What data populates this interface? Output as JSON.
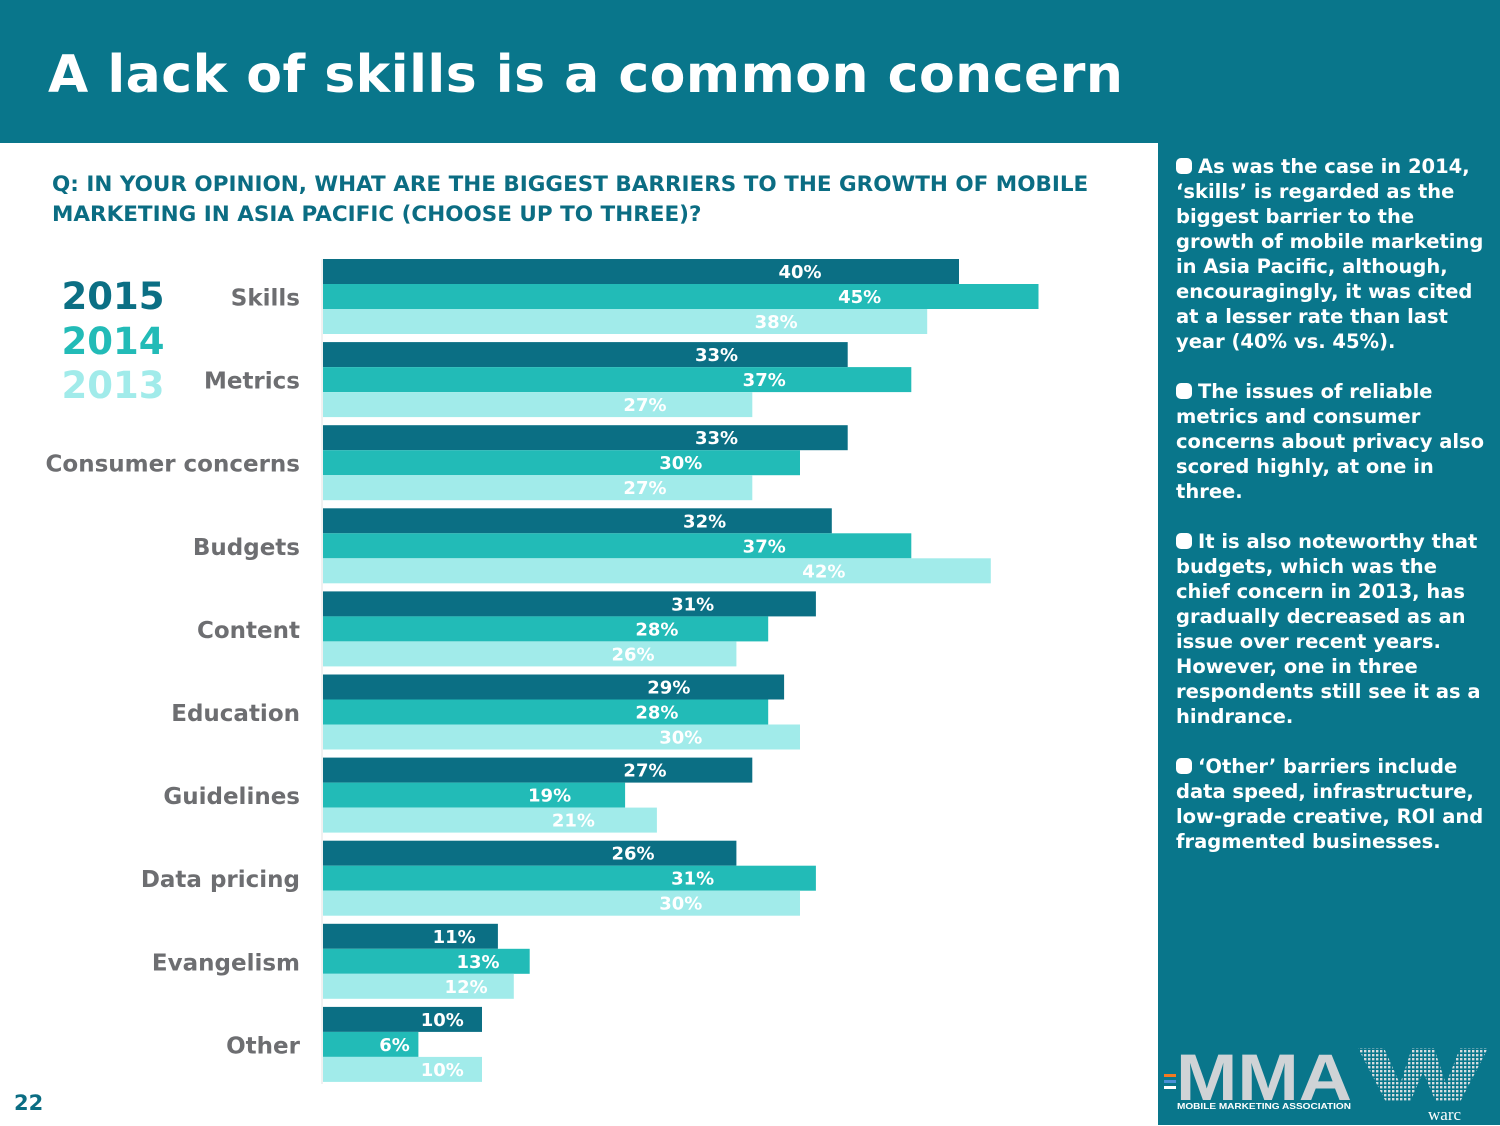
{
  "page": {
    "title": "A lack of skills is a common concern",
    "question": "Q: IN YOUR OPINION, WHAT ARE THE BIGGEST BARRIERS TO THE GROWTH OF MOBILE MARKETING IN ASIA PACIFIC (CHOOSE UP TO THREE)?",
    "page_number": "22"
  },
  "colors": {
    "header": "#09768b",
    "2015": "#0b6f84",
    "2014": "#22bbb7",
    "2013": "#a1ebea",
    "category_text": "#6d6e71",
    "label_on_dark": "#ffffff",
    "label_on_light": "#ffffff"
  },
  "chart_data": {
    "type": "bar",
    "orientation": "horizontal",
    "categories": [
      "Skills",
      "Metrics",
      "Consumer concerns",
      "Budgets",
      "Content",
      "Education",
      "Guidelines",
      "Data pricing",
      "Evangelism",
      "Other"
    ],
    "series": [
      {
        "name": "2015",
        "values": [
          40,
          33,
          33,
          32,
          31,
          29,
          27,
          26,
          11,
          10
        ]
      },
      {
        "name": "2014",
        "values": [
          45,
          37,
          30,
          37,
          28,
          28,
          19,
          31,
          13,
          6
        ]
      },
      {
        "name": "2013",
        "values": [
          38,
          27,
          27,
          42,
          26,
          30,
          21,
          30,
          12,
          10
        ]
      }
    ],
    "value_suffix": "%",
    "xlim": [
      0,
      100
    ],
    "legend": [
      "2015",
      "2014",
      "2013"
    ],
    "legend_position": "left"
  },
  "notes": [
    "As was the case in 2014, ‘skills’ is regarded as the biggest barrier to the growth of mobile marketing in Asia Pacific, although, encouragingly, it was cited at a lesser rate than last year (40% vs. 45%).",
    "The issues of reliable metrics and consumer concerns about privacy also scored highly, at one in three.",
    "It is also noteworthy that budgets, which was the chief concern in 2013, has gradually decreased as an issue over recent years. However, one in three respondents still see it as a hindrance.",
    "‘Other’ barriers include data speed, infrastructure, low-grade creative, ROI and fragmented businesses."
  ],
  "logos": {
    "mma": "MMA",
    "mma_sub": "MOBILE MARKETING ASSOCIATION",
    "warc": "warc"
  }
}
